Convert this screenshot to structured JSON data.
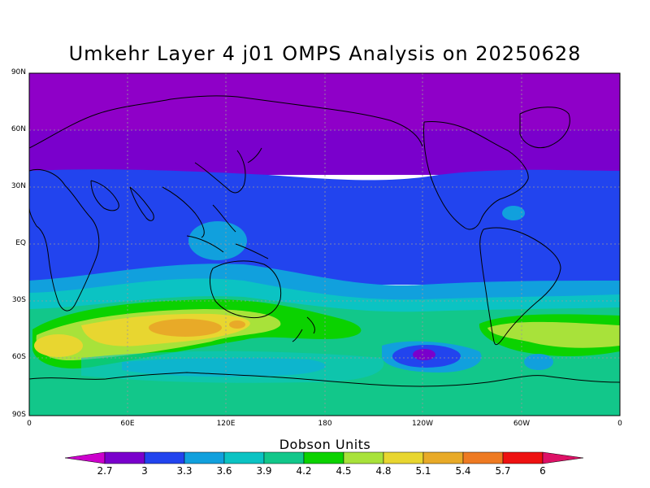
{
  "title": "Umkehr Layer 4 j01 OMPS Analysis on 20250628",
  "lat_labels": [
    "90N",
    "60N",
    "30N",
    "EQ",
    "30S",
    "60S",
    "90S"
  ],
  "lon_labels": [
    "0",
    "60E",
    "120E",
    "180",
    "120W",
    "60W",
    "0"
  ],
  "colorbar": {
    "title": "Dobson Units",
    "ticks": [
      "2.7",
      "3",
      "3.3",
      "3.6",
      "3.9",
      "4.2",
      "4.5",
      "4.8",
      "5.1",
      "5.4",
      "5.7",
      "6"
    ],
    "colors": [
      "#cc00cc",
      "#7a00cc",
      "#2244ee",
      "#11a0dd",
      "#0bc3c3",
      "#12c78a",
      "#0bd200",
      "#a8e23a",
      "#e8d630",
      "#e8aa28",
      "#ee7a22",
      "#ee1111",
      "#dd1166"
    ]
  },
  "map_colors": {
    "purple_dark": "#8f00c8",
    "purple": "#7a00cc",
    "blue": "#2244ee",
    "cyan_blue": "#11a0dd",
    "teal": "#0bc3c3",
    "sea_green": "#12c78a",
    "green": "#0bd200",
    "lime": "#a8e23a",
    "yellow": "#e8d630",
    "orange": "#e8aa28"
  }
}
